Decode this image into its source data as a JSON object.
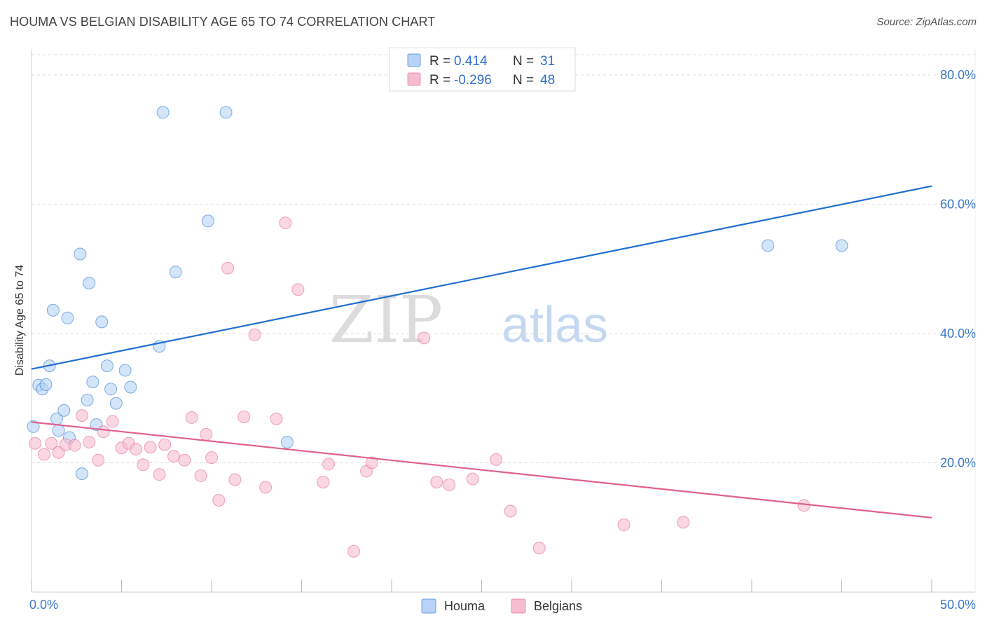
{
  "header": {
    "title": "HOUMA VS BELGIAN DISABILITY AGE 65 TO 74 CORRELATION CHART",
    "source": "Source: ZipAtlas.com"
  },
  "chart_data": {
    "type": "scatter",
    "title": "HOUMA VS BELGIAN DISABILITY AGE 65 TO 74 CORRELATION CHART",
    "xlabel": "",
    "ylabel": "Disability Age 65 to 74",
    "xlim": [
      0,
      50
    ],
    "ylim": [
      0,
      84
    ],
    "x_tick_labels": [
      {
        "value": 0,
        "label": "0.0%"
      },
      {
        "value": 50,
        "label": "50.0%"
      }
    ],
    "y_tick_labels": [
      {
        "value": 20,
        "label": "20.0%"
      },
      {
        "value": 40,
        "label": "40.0%"
      },
      {
        "value": 60,
        "label": "60.0%"
      },
      {
        "value": 80,
        "label": "80.0%"
      }
    ],
    "grid": true,
    "legend_position": "bottom-center",
    "watermark": {
      "part1": "ZIP",
      "part2": "atlas"
    },
    "stats_box": {
      "position": "top-center",
      "rows": [
        {
          "series": "Houma",
          "r_label": "R =",
          "r_value": "0.414",
          "n_label": "N =",
          "n_value": "31"
        },
        {
          "series": "Belgians",
          "r_label": "R =",
          "r_value": "-0.296",
          "n_label": "N =",
          "n_value": "48"
        }
      ]
    },
    "series": [
      {
        "name": "Houma",
        "color": "#1f6fd1",
        "fill": "#b8d3f5",
        "trend": {
          "x": [
            0,
            50
          ],
          "y": [
            34.5,
            62.8
          ]
        },
        "points": [
          {
            "x": 0.1,
            "y": 25.6
          },
          {
            "x": 0.4,
            "y": 32.0
          },
          {
            "x": 0.6,
            "y": 31.4
          },
          {
            "x": 0.8,
            "y": 32.1
          },
          {
            "x": 1.0,
            "y": 35.0
          },
          {
            "x": 1.2,
            "y": 43.6
          },
          {
            "x": 1.4,
            "y": 26.8
          },
          {
            "x": 1.5,
            "y": 25.0
          },
          {
            "x": 1.8,
            "y": 28.1
          },
          {
            "x": 2.0,
            "y": 42.4
          },
          {
            "x": 2.1,
            "y": 23.9
          },
          {
            "x": 2.7,
            "y": 52.3
          },
          {
            "x": 2.8,
            "y": 18.3
          },
          {
            "x": 3.1,
            "y": 29.7
          },
          {
            "x": 3.2,
            "y": 47.8
          },
          {
            "x": 3.4,
            "y": 32.5
          },
          {
            "x": 3.6,
            "y": 25.9
          },
          {
            "x": 3.9,
            "y": 41.8
          },
          {
            "x": 4.2,
            "y": 35.0
          },
          {
            "x": 4.4,
            "y": 31.4
          },
          {
            "x": 4.7,
            "y": 29.2
          },
          {
            "x": 5.2,
            "y": 34.3
          },
          {
            "x": 5.5,
            "y": 31.7
          },
          {
            "x": 7.1,
            "y": 38.0
          },
          {
            "x": 7.3,
            "y": 74.2
          },
          {
            "x": 8.0,
            "y": 49.5
          },
          {
            "x": 9.8,
            "y": 57.4
          },
          {
            "x": 10.8,
            "y": 74.2
          },
          {
            "x": 14.2,
            "y": 23.2
          },
          {
            "x": 40.9,
            "y": 53.6
          },
          {
            "x": 45.0,
            "y": 53.6
          }
        ]
      },
      {
        "name": "Belgians",
        "color": "#e06090",
        "fill": "#f7bccf",
        "trend": {
          "x": [
            0,
            50
          ],
          "y": [
            26.3,
            11.5
          ]
        },
        "points": [
          {
            "x": 0.2,
            "y": 23.0
          },
          {
            "x": 0.7,
            "y": 21.3
          },
          {
            "x": 1.1,
            "y": 23.0
          },
          {
            "x": 1.5,
            "y": 21.6
          },
          {
            "x": 1.9,
            "y": 22.8
          },
          {
            "x": 2.4,
            "y": 22.7
          },
          {
            "x": 2.8,
            "y": 27.3
          },
          {
            "x": 3.2,
            "y": 23.2
          },
          {
            "x": 3.7,
            "y": 20.4
          },
          {
            "x": 4.0,
            "y": 24.8
          },
          {
            "x": 4.5,
            "y": 26.4
          },
          {
            "x": 5.0,
            "y": 22.3
          },
          {
            "x": 5.4,
            "y": 23.0
          },
          {
            "x": 5.8,
            "y": 22.1
          },
          {
            "x": 6.2,
            "y": 19.7
          },
          {
            "x": 6.6,
            "y": 22.4
          },
          {
            "x": 7.1,
            "y": 18.2
          },
          {
            "x": 7.4,
            "y": 22.8
          },
          {
            "x": 7.9,
            "y": 21.0
          },
          {
            "x": 8.5,
            "y": 20.4
          },
          {
            "x": 8.9,
            "y": 27.0
          },
          {
            "x": 9.4,
            "y": 18.0
          },
          {
            "x": 9.7,
            "y": 24.4
          },
          {
            "x": 10.0,
            "y": 20.8
          },
          {
            "x": 10.4,
            "y": 14.2
          },
          {
            "x": 10.9,
            "y": 50.1
          },
          {
            "x": 11.3,
            "y": 17.4
          },
          {
            "x": 11.8,
            "y": 27.1
          },
          {
            "x": 12.4,
            "y": 39.8
          },
          {
            "x": 13.0,
            "y": 16.2
          },
          {
            "x": 13.6,
            "y": 26.8
          },
          {
            "x": 14.1,
            "y": 57.1
          },
          {
            "x": 14.8,
            "y": 46.8
          },
          {
            "x": 16.2,
            "y": 17.0
          },
          {
            "x": 16.5,
            "y": 19.8
          },
          {
            "x": 17.9,
            "y": 6.3
          },
          {
            "x": 18.6,
            "y": 18.7
          },
          {
            "x": 18.9,
            "y": 20.0
          },
          {
            "x": 21.8,
            "y": 39.3
          },
          {
            "x": 22.5,
            "y": 17.0
          },
          {
            "x": 23.2,
            "y": 16.6
          },
          {
            "x": 24.5,
            "y": 17.5
          },
          {
            "x": 25.8,
            "y": 20.5
          },
          {
            "x": 26.6,
            "y": 12.5
          },
          {
            "x": 28.2,
            "y": 6.8
          },
          {
            "x": 32.9,
            "y": 10.4
          },
          {
            "x": 36.2,
            "y": 10.8
          },
          {
            "x": 42.9,
            "y": 13.4
          }
        ]
      }
    ]
  }
}
